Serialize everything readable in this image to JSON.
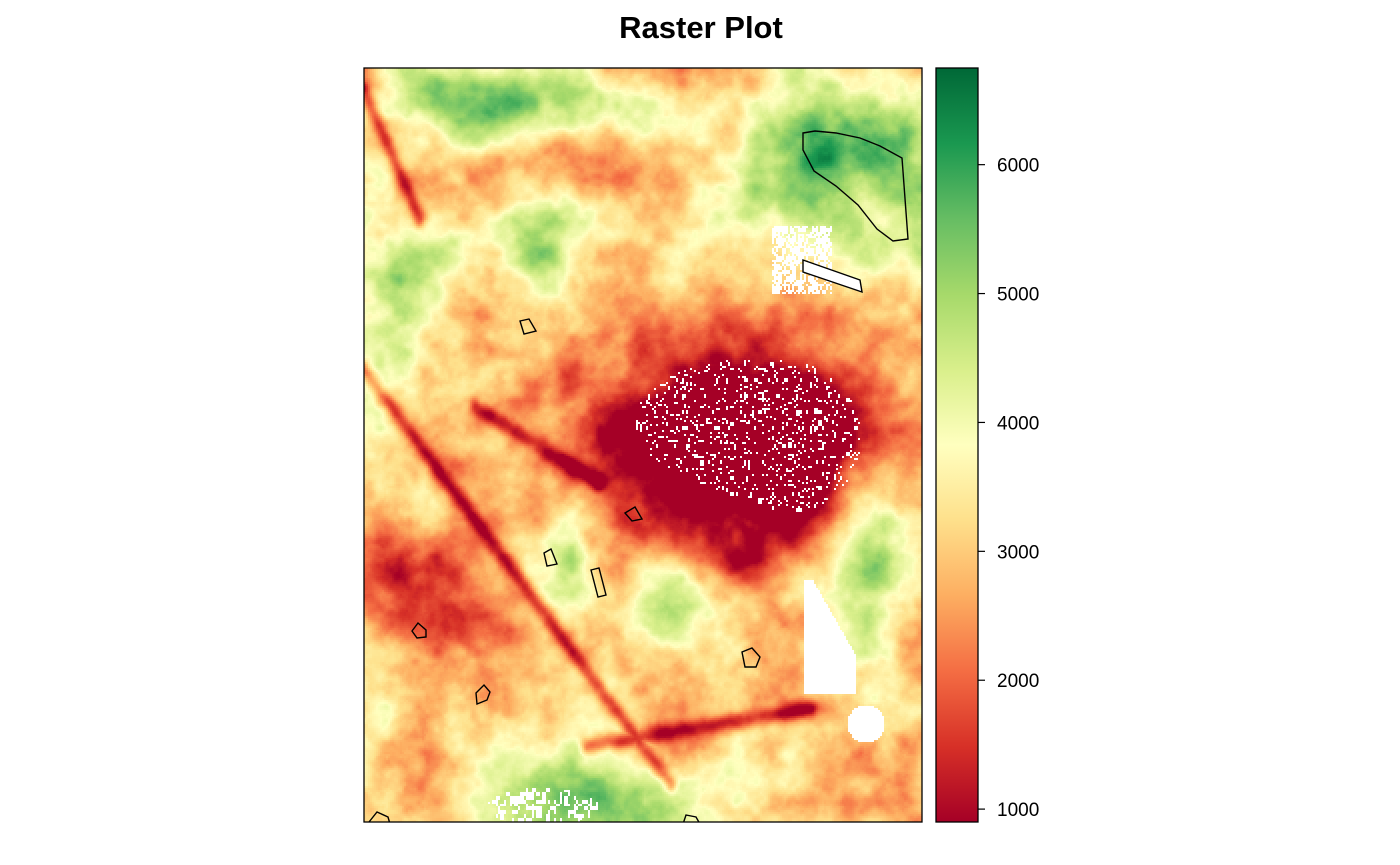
{
  "chart_data": {
    "type": "heatmap",
    "title": "Raster Plot",
    "xlabel": "",
    "ylabel": "",
    "value_range": [
      900,
      6750
    ],
    "colorbar": {
      "position": "right",
      "ticks": [
        1000,
        2000,
        3000,
        4000,
        5000,
        6000
      ],
      "tick_labels": [
        "1000",
        "2000",
        "3000",
        "4000",
        "5000",
        "6000"
      ],
      "palette": [
        "#a50026",
        "#d73027",
        "#f46d43",
        "#fdae61",
        "#fee08b",
        "#ffffbf",
        "#d9ef8b",
        "#a6d96a",
        "#66bd63",
        "#1a9850",
        "#006837"
      ]
    },
    "na_color": "#ffffff",
    "polygon_outline_color": "#000000"
  }
}
